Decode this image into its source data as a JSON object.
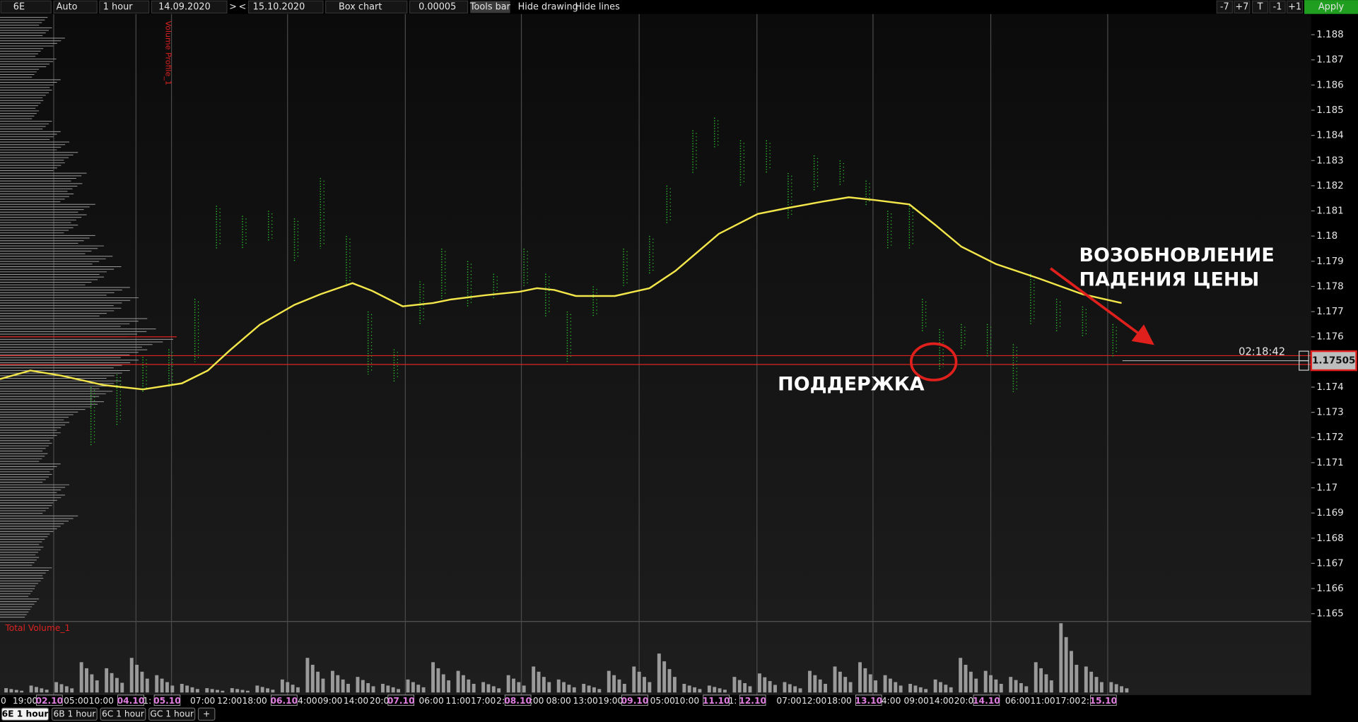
{
  "toolbar": {
    "symbol": "6E",
    "scale": "Auto",
    "timeframe": "1 hour",
    "date_from": "14.09.2020",
    "next": ">",
    "prev": "<",
    "date_to": "15.10.2020",
    "chart_type": "Box chart",
    "tick_size": "0.00005",
    "tools_bar": "Tools bar",
    "hide_drawing": "Hide drawing",
    "hide_lines": "Hide lines",
    "buttons": [
      "-7",
      "+7",
      "T",
      "-1",
      "+1"
    ],
    "apply": "Apply"
  },
  "chart_data": {
    "type": "line",
    "ylim": [
      1.1647,
      1.1888
    ],
    "yticks": [
      1.165,
      1.166,
      1.167,
      1.168,
      1.169,
      1.17,
      1.171,
      1.172,
      1.173,
      1.174,
      1.175,
      1.176,
      1.177,
      1.178,
      1.179,
      1.18,
      1.181,
      1.182,
      1.183,
      1.184,
      1.185,
      1.186,
      1.187,
      1.188
    ],
    "x_labels": [
      "0",
      "19:00",
      "02.10",
      "05:00",
      "10:00",
      "04.10",
      "1:",
      "05.10",
      "07:00",
      "12:00",
      "18:00",
      "06.10",
      "4:00",
      "09:00",
      "14:00",
      "20:0",
      "07.10",
      "06:00",
      "11:00",
      "17:00",
      "2:",
      "08.10",
      ":00",
      "08:00",
      "13:00",
      "19:00",
      "09.10",
      "05:00",
      "10:00",
      "11.10",
      "1:",
      "12.10",
      "07:00",
      "12:00",
      "18:00",
      "13.10",
      "4:00",
      "09:00",
      "14:00",
      "20:0",
      "14.10",
      "06:00",
      "11:00",
      "17:00",
      "2:",
      "15.10"
    ],
    "ma_color": "#f2e64a",
    "ma_values": [
      1.17432,
      1.17466,
      1.17446,
      1.17408,
      1.17391,
      1.17415,
      1.17466,
      1.17545,
      1.17648,
      1.17727,
      1.17769,
      1.17813,
      1.17782,
      1.17721,
      1.17734,
      1.17748,
      1.17765,
      1.17779,
      1.17793,
      1.17786,
      1.17762,
      1.17762,
      1.17793,
      1.17862,
      1.18009,
      1.18088,
      1.18112,
      1.18137,
      1.18154,
      1.18143,
      1.18126,
      1.18044,
      1.17958,
      1.17889,
      1.17831,
      1.17769,
      1.17734
    ],
    "bar_color": "#2ecc2e",
    "highs": [
      1.174,
      1.1745,
      1.1752,
      1.1755,
      1.1775,
      1.1812,
      1.1808,
      1.181,
      1.1807,
      1.1823,
      1.18,
      1.177,
      1.1755,
      1.1782,
      1.1795,
      1.179,
      1.1785,
      1.1795,
      1.1785,
      1.177,
      1.178,
      1.1795,
      1.18,
      1.182,
      1.1842,
      1.1847,
      1.1838,
      1.1838,
      1.1825,
      1.1832,
      1.183,
      1.1822,
      1.181,
      1.1812,
      1.1775,
      1.1763,
      1.1765,
      1.1765,
      1.1757,
      1.1785,
      1.1775,
      1.1772,
      1.1765
    ],
    "lows": [
      1.1717,
      1.1725,
      1.1738,
      1.174,
      1.175,
      1.1795,
      1.1795,
      1.1798,
      1.179,
      1.1795,
      1.178,
      1.1745,
      1.1742,
      1.1765,
      1.1775,
      1.1772,
      1.1775,
      1.178,
      1.1768,
      1.175,
      1.1768,
      1.178,
      1.1785,
      1.1805,
      1.1825,
      1.1835,
      1.182,
      1.1825,
      1.1807,
      1.1818,
      1.182,
      1.1812,
      1.1795,
      1.1795,
      1.1762,
      1.1747,
      1.1755,
      1.1752,
      1.1738,
      1.1765,
      1.1762,
      1.176,
      1.1752
    ],
    "volume_values": [
      5,
      8,
      12,
      35,
      28,
      40,
      20,
      10,
      5,
      5,
      8,
      15,
      40,
      25,
      18,
      10,
      15,
      35,
      25,
      12,
      20,
      30,
      15,
      10,
      25,
      30,
      45,
      10,
      8,
      18,
      22,
      12,
      25,
      30,
      35,
      20,
      10,
      15,
      40,
      25,
      18,
      35,
      80,
      30,
      12
    ],
    "volume_profile": [
      55,
      60,
      75,
      50,
      65,
      45,
      70,
      60,
      50,
      45,
      60,
      70,
      80,
      90,
      75,
      100,
      95,
      85,
      110,
      100,
      90,
      110,
      120,
      130,
      140,
      120,
      150,
      160,
      140,
      170,
      180,
      200,
      170,
      160,
      150,
      140,
      130,
      120,
      90,
      80,
      70,
      60,
      55,
      70,
      60,
      80,
      75,
      60,
      90,
      70,
      55,
      50,
      45,
      60,
      50,
      40,
      45,
      35
    ],
    "profile_marker": 1.176,
    "levels": [
      1.17525,
      1.1749
    ],
    "last_price": 1.17505,
    "timer": "02:18:42",
    "volume_profile_label": "Volume Profile_1",
    "volume_label": "Total Volume_1",
    "annotations": {
      "resume_fall": [
        "ВОЗОБНОВЛЕНИЕ",
        "ПАДЕНИЯ ЦЕНЫ"
      ],
      "support": "ПОДДЕРЖКА"
    }
  },
  "tabs": [
    "6E 1 hour",
    "6B 1 hour",
    "6C 1 hour",
    "GC 1 hour",
    "+"
  ]
}
